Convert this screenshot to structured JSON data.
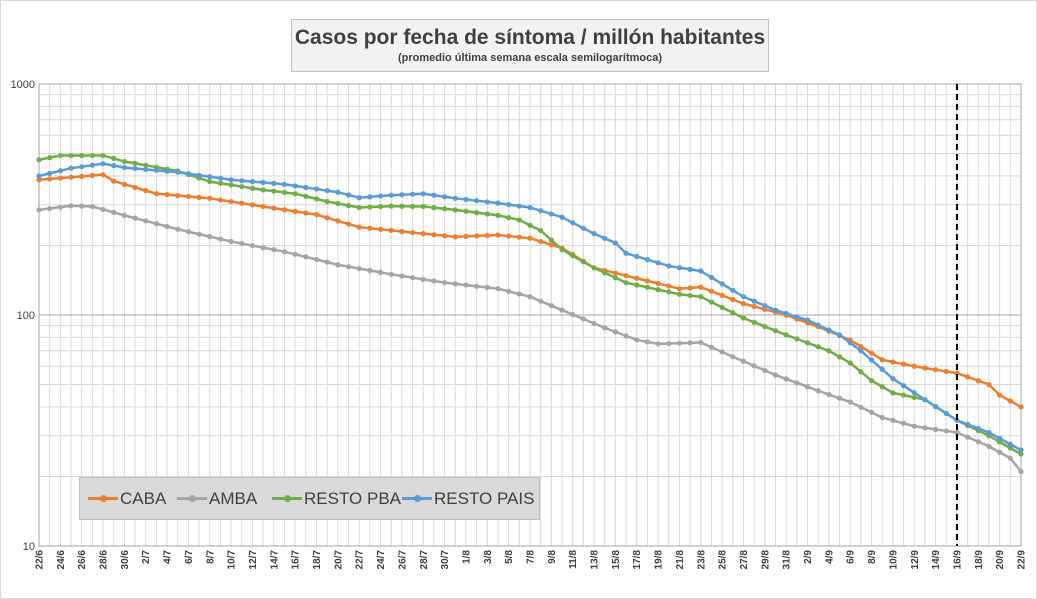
{
  "chart_data": {
    "type": "line",
    "title": "Casos por fecha de síntoma / millón habitantes",
    "subtitle": "(promedio última semana escala semilogarítmoca)",
    "y_scale": "log",
    "ylim": [
      10,
      1000
    ],
    "y_ticks": [
      "1000",
      "100",
      "10"
    ],
    "x_range": [
      "2020-06-22",
      "2020-09-22"
    ],
    "x_tick_labels": [
      "22/6",
      "24/6",
      "26/6",
      "28/6",
      "30/6",
      "2/7",
      "4/7",
      "6/7",
      "8/7",
      "10/7",
      "12/7",
      "14/7",
      "16/7",
      "18/7",
      "20/7",
      "22/7",
      "24/7",
      "26/7",
      "28/7",
      "30/7",
      "1/8",
      "3/8",
      "5/8",
      "7/8",
      "9/8",
      "11/8",
      "13/8",
      "15/8",
      "17/8",
      "19/8",
      "21/8",
      "23/8",
      "25/8",
      "27/8",
      "29/8",
      "31/8",
      "2/9",
      "4/9",
      "6/9",
      "8/9",
      "10/9",
      "12/9",
      "14/9",
      "16/9",
      "18/9",
      "20/9",
      "22/9"
    ],
    "marker_date": "2020-09-16",
    "grid": true,
    "legend_position": "bottom-left",
    "series": [
      {
        "name": "CABA",
        "color": "#ed7d31",
        "points": [
          [
            "2020-06-22",
            385
          ],
          [
            "2020-06-28",
            405
          ],
          [
            "2020-06-29",
            380
          ],
          [
            "2020-07-03",
            335
          ],
          [
            "2020-07-08",
            320
          ],
          [
            "2020-07-13",
            295
          ],
          [
            "2020-07-18",
            272
          ],
          [
            "2020-07-22",
            240
          ],
          [
            "2020-07-28",
            225
          ],
          [
            "2020-07-31",
            218
          ],
          [
            "2020-08-04",
            222
          ],
          [
            "2020-08-07",
            215
          ],
          [
            "2020-08-10",
            195
          ],
          [
            "2020-08-13",
            160
          ],
          [
            "2020-08-16",
            148
          ],
          [
            "2020-08-21",
            130
          ],
          [
            "2020-08-23",
            132
          ],
          [
            "2020-08-27",
            112
          ],
          [
            "2020-08-31",
            100
          ],
          [
            "2020-09-03",
            89
          ],
          [
            "2020-09-06",
            78
          ],
          [
            "2020-09-09",
            64
          ],
          [
            "2020-09-12",
            60
          ],
          [
            "2020-09-16",
            56
          ],
          [
            "2020-09-19",
            50
          ],
          [
            "2020-09-20",
            45
          ],
          [
            "2020-09-22",
            40
          ]
        ]
      },
      {
        "name": "AMBA",
        "color": "#a5a5a5",
        "points": [
          [
            "2020-06-22",
            285
          ],
          [
            "2020-06-25",
            297
          ],
          [
            "2020-06-27",
            295
          ],
          [
            "2020-06-30",
            270
          ],
          [
            "2020-07-05",
            235
          ],
          [
            "2020-07-10",
            208
          ],
          [
            "2020-07-15",
            188
          ],
          [
            "2020-07-20",
            165
          ],
          [
            "2020-07-25",
            150
          ],
          [
            "2020-07-30",
            138
          ],
          [
            "2020-08-04",
            130
          ],
          [
            "2020-08-07",
            120
          ],
          [
            "2020-08-10",
            105
          ],
          [
            "2020-08-14",
            88
          ],
          [
            "2020-08-17",
            78
          ],
          [
            "2020-08-19",
            75
          ],
          [
            "2020-08-23",
            76
          ],
          [
            "2020-08-26",
            66
          ],
          [
            "2020-08-30",
            55
          ],
          [
            "2020-09-03",
            47
          ],
          [
            "2020-09-06",
            42
          ],
          [
            "2020-09-09",
            36
          ],
          [
            "2020-09-12",
            33
          ],
          [
            "2020-09-16",
            31
          ],
          [
            "2020-09-19",
            27
          ],
          [
            "2020-09-21",
            24
          ],
          [
            "2020-09-22",
            21
          ]
        ]
      },
      {
        "name": "RESTO PBA",
        "color": "#70ad47",
        "points": [
          [
            "2020-06-22",
            470
          ],
          [
            "2020-06-24",
            490
          ],
          [
            "2020-06-28",
            490
          ],
          [
            "2020-06-30",
            462
          ],
          [
            "2020-07-05",
            420
          ],
          [
            "2020-07-08",
            378
          ],
          [
            "2020-07-13",
            348
          ],
          [
            "2020-07-16",
            335
          ],
          [
            "2020-07-19",
            310
          ],
          [
            "2020-07-22",
            292
          ],
          [
            "2020-07-25",
            296
          ],
          [
            "2020-07-28",
            295
          ],
          [
            "2020-07-31",
            285
          ],
          [
            "2020-08-04",
            270
          ],
          [
            "2020-08-06",
            258
          ],
          [
            "2020-08-08",
            232
          ],
          [
            "2020-08-10",
            192
          ],
          [
            "2020-08-13",
            160
          ],
          [
            "2020-08-16",
            138
          ],
          [
            "2020-08-21",
            123
          ],
          [
            "2020-08-23",
            120
          ],
          [
            "2020-08-27",
            97
          ],
          [
            "2020-08-31",
            82
          ],
          [
            "2020-09-04",
            70
          ],
          [
            "2020-09-06",
            62
          ],
          [
            "2020-09-08",
            52
          ],
          [
            "2020-09-10",
            46
          ],
          [
            "2020-09-13",
            43
          ],
          [
            "2020-09-16",
            35
          ],
          [
            "2020-09-19",
            30
          ],
          [
            "2020-09-22",
            25
          ]
        ]
      },
      {
        "name": "RESTO PAIS",
        "color": "#5b9bd5",
        "points": [
          [
            "2020-06-22",
            400
          ],
          [
            "2020-06-25",
            432
          ],
          [
            "2020-06-28",
            452
          ],
          [
            "2020-06-30",
            435
          ],
          [
            "2020-07-05",
            415
          ],
          [
            "2020-07-10",
            385
          ],
          [
            "2020-07-15",
            368
          ],
          [
            "2020-07-20",
            340
          ],
          [
            "2020-07-22",
            322
          ],
          [
            "2020-07-25",
            330
          ],
          [
            "2020-07-28",
            335
          ],
          [
            "2020-07-31",
            320
          ],
          [
            "2020-08-04",
            305
          ],
          [
            "2020-08-07",
            292
          ],
          [
            "2020-08-10",
            265
          ],
          [
            "2020-08-13",
            225
          ],
          [
            "2020-08-15",
            205
          ],
          [
            "2020-08-16",
            185
          ],
          [
            "2020-08-20",
            163
          ],
          [
            "2020-08-23",
            155
          ],
          [
            "2020-08-27",
            120
          ],
          [
            "2020-08-30",
            105
          ],
          [
            "2020-09-02",
            95
          ],
          [
            "2020-09-05",
            82
          ],
          [
            "2020-09-07",
            70
          ],
          [
            "2020-09-10",
            53
          ],
          [
            "2020-09-13",
            43
          ],
          [
            "2020-09-16",
            35
          ],
          [
            "2020-09-19",
            31
          ],
          [
            "2020-09-22",
            26
          ]
        ]
      }
    ]
  }
}
